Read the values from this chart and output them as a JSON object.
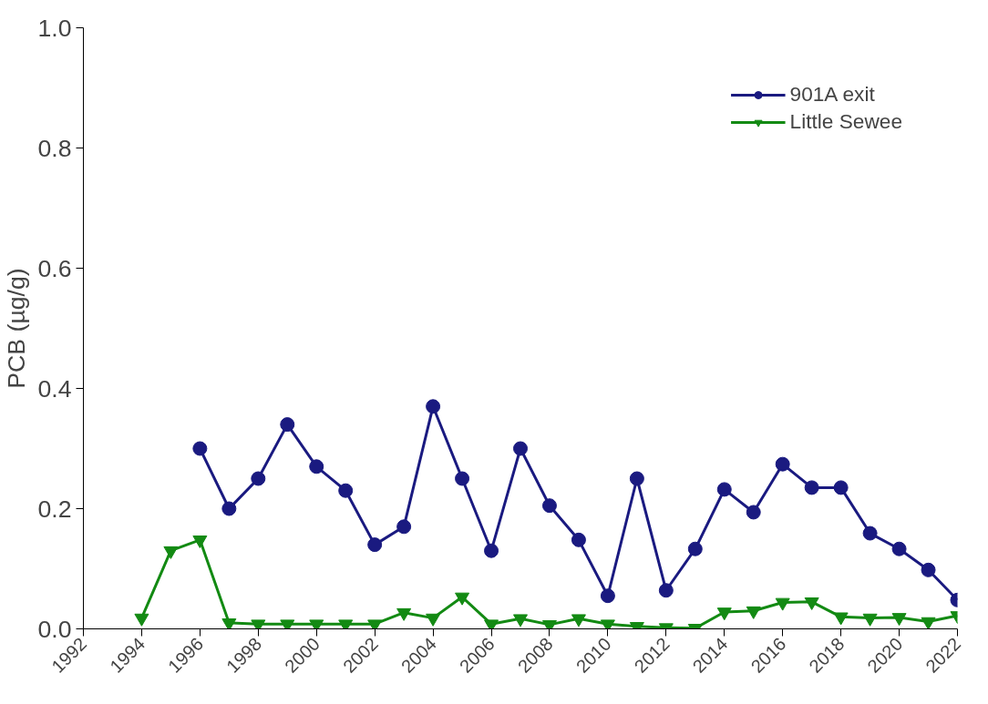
{
  "chart_data": {
    "type": "line",
    "ylabel": "PCB (µg/g)",
    "xlim": [
      1992,
      2022
    ],
    "ylim": [
      0,
      1.0
    ],
    "xticks": [
      1992,
      1994,
      1996,
      1998,
      2000,
      2002,
      2004,
      2006,
      2008,
      2010,
      2012,
      2014,
      2016,
      2018,
      2020,
      2022
    ],
    "yticks": [
      {
        "value": 0,
        "label": "0.0"
      },
      {
        "value": 0.2,
        "label": "0.2"
      },
      {
        "value": 0.4,
        "label": "0.4"
      },
      {
        "value": 0.6,
        "label": "0.6"
      },
      {
        "value": 0.8,
        "label": "0.8"
      },
      {
        "value": 1.0,
        "label": "1.0"
      }
    ],
    "grid": false,
    "legend": "top right",
    "line_style": "solid",
    "series": [
      {
        "name": "901A exit",
        "color": "#1a1a80",
        "marker": "circle",
        "x": [
          1996,
          1997,
          1998,
          1999,
          2000,
          2001,
          2002,
          2003,
          2004,
          2005,
          2006,
          2007,
          2008,
          2009,
          2010,
          2011,
          2012,
          2013,
          2014,
          2015,
          2016,
          2017,
          2018,
          2019,
          2020,
          2021,
          2022
        ],
        "values": [
          0.3,
          0.2,
          0.25,
          0.34,
          0.27,
          0.23,
          0.14,
          0.17,
          0.37,
          0.25,
          0.13,
          0.3,
          0.205,
          0.148,
          0.055,
          0.25,
          0.064,
          0.133,
          0.232,
          0.194,
          0.274,
          0.235,
          0.235,
          0.159,
          0.133,
          0.098,
          0.048
        ]
      },
      {
        "name": "Little Sewee",
        "color": "#138a13",
        "marker": "triangle-down",
        "x": [
          1994,
          1995,
          1996,
          1997,
          1998,
          1999,
          2000,
          2001,
          2002,
          2003,
          2004,
          2005,
          2006,
          2007,
          2008,
          2009,
          2010,
          2011,
          2012,
          2013,
          2014,
          2015,
          2016,
          2017,
          2018,
          2019,
          2020,
          2021,
          2022
        ],
        "values": [
          0.018,
          0.13,
          0.148,
          0.01,
          0.008,
          0.008,
          0.008,
          0.008,
          0.008,
          0.027,
          0.018,
          0.053,
          0.008,
          0.017,
          0.007,
          0.017,
          0.008,
          0.004,
          0.002,
          0.001,
          0.028,
          0.03,
          0.044,
          0.045,
          0.02,
          0.018,
          0.019,
          0.012,
          0.022
        ]
      }
    ]
  }
}
